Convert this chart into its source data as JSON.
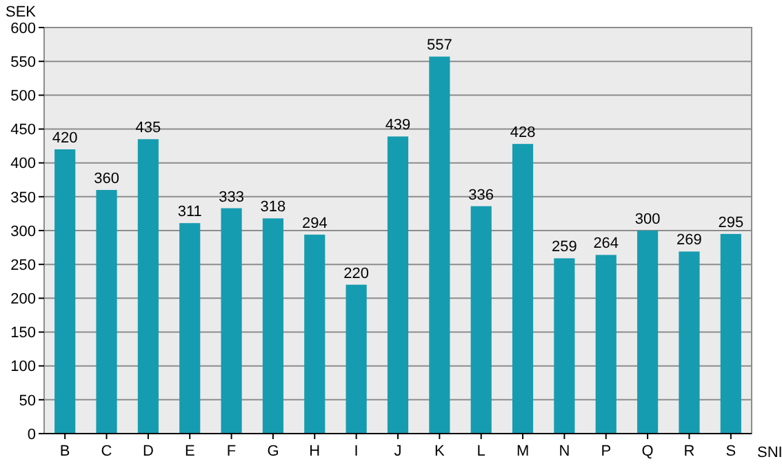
{
  "chart_data": {
    "type": "bar",
    "xlabel": "SNI",
    "ylabel": "SEK",
    "categories": [
      "B",
      "C",
      "D",
      "E",
      "F",
      "G",
      "H",
      "I",
      "J",
      "K",
      "L",
      "M",
      "N",
      "P",
      "Q",
      "R",
      "S"
    ],
    "values": [
      420,
      360,
      435,
      311,
      333,
      318,
      294,
      220,
      439,
      557,
      336,
      428,
      259,
      264,
      300,
      269,
      295
    ],
    "color": "#169cb0",
    "ylim": [
      0,
      600
    ],
    "yticks": [
      0,
      50,
      100,
      150,
      200,
      250,
      300,
      350,
      400,
      450,
      500,
      550,
      600
    ],
    "grid": "y",
    "data_labels": true
  }
}
